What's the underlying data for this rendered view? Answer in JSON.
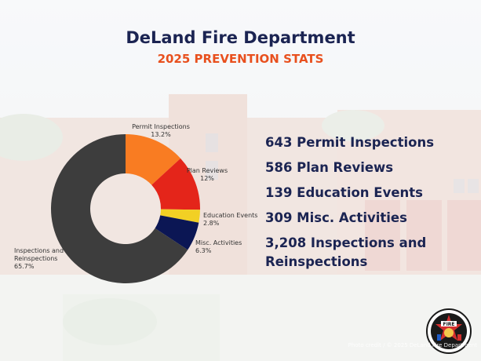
{
  "header": {
    "title": "DeLand Fire Department",
    "subtitle": "2025 PREVENTION STATS"
  },
  "chart_data": {
    "type": "pie",
    "style": "donut",
    "slices": [
      {
        "label": "Permit Inspections",
        "percent_label": "13.2%",
        "value": 13.2,
        "color": "#f97c22"
      },
      {
        "label": "Plan Reviews",
        "percent_label": "12%",
        "value": 12.0,
        "color": "#e4251a"
      },
      {
        "label": "Education Events",
        "percent_label": "2.8%",
        "value": 2.8,
        "color": "#f2d024"
      },
      {
        "label": "Misc. Activities",
        "percent_label": "6.3%",
        "value": 6.3,
        "color": "#0b1654"
      },
      {
        "label": "Inspections and Reinspections",
        "percent_label": "65.7%",
        "value": 65.7,
        "color": "#3d3d3d"
      }
    ]
  },
  "stats": [
    "643 Permit Inspections",
    "586 Plan Reviews",
    "139 Education Events",
    "309 Misc. Activities",
    "3,208 Inspections and Reinspections"
  ],
  "badge": {
    "text": "FIRE"
  },
  "credit": "Photo credit / © 2025 DeLand Fire Department"
}
